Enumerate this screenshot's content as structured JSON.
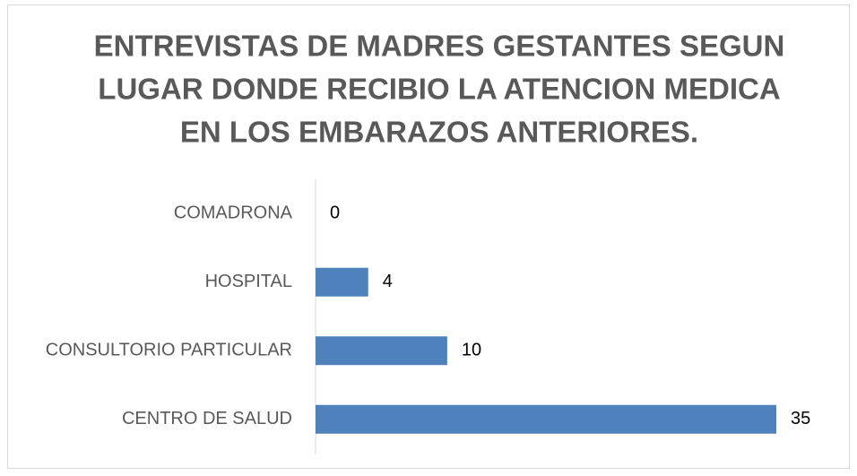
{
  "chart_data": {
    "type": "bar",
    "orientation": "horizontal",
    "title": [
      "ENTREVISTAS DE MADRES GESTANTES SEGUN",
      "LUGAR DONDE RECIBIO LA ATENCION MEDICA",
      "EN LOS EMBARAZOS ANTERIORES."
    ],
    "categories": [
      "COMADRONA",
      "HOSPITAL",
      "CONSULTORIO PARTICULAR",
      "CENTRO DE SALUD"
    ],
    "values": [
      0,
      4,
      10,
      35
    ],
    "color": "#4f81bd"
  }
}
